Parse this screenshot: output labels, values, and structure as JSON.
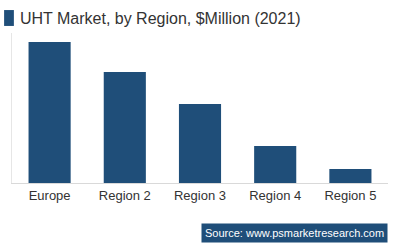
{
  "chart_data": {
    "type": "bar",
    "title": "UHT Market, by Region, $Million (2021)",
    "categories": [
      "Europe",
      "Region 2",
      "Region 3",
      "Region 4",
      "Region 5"
    ],
    "values": [
      141,
      111,
      79,
      37,
      14
    ],
    "color": "#1f4e79",
    "ylim": [
      0,
      150
    ],
    "grid": false,
    "tick_labels": "x",
    "source": "Source: www.psmarketresearch.com"
  }
}
